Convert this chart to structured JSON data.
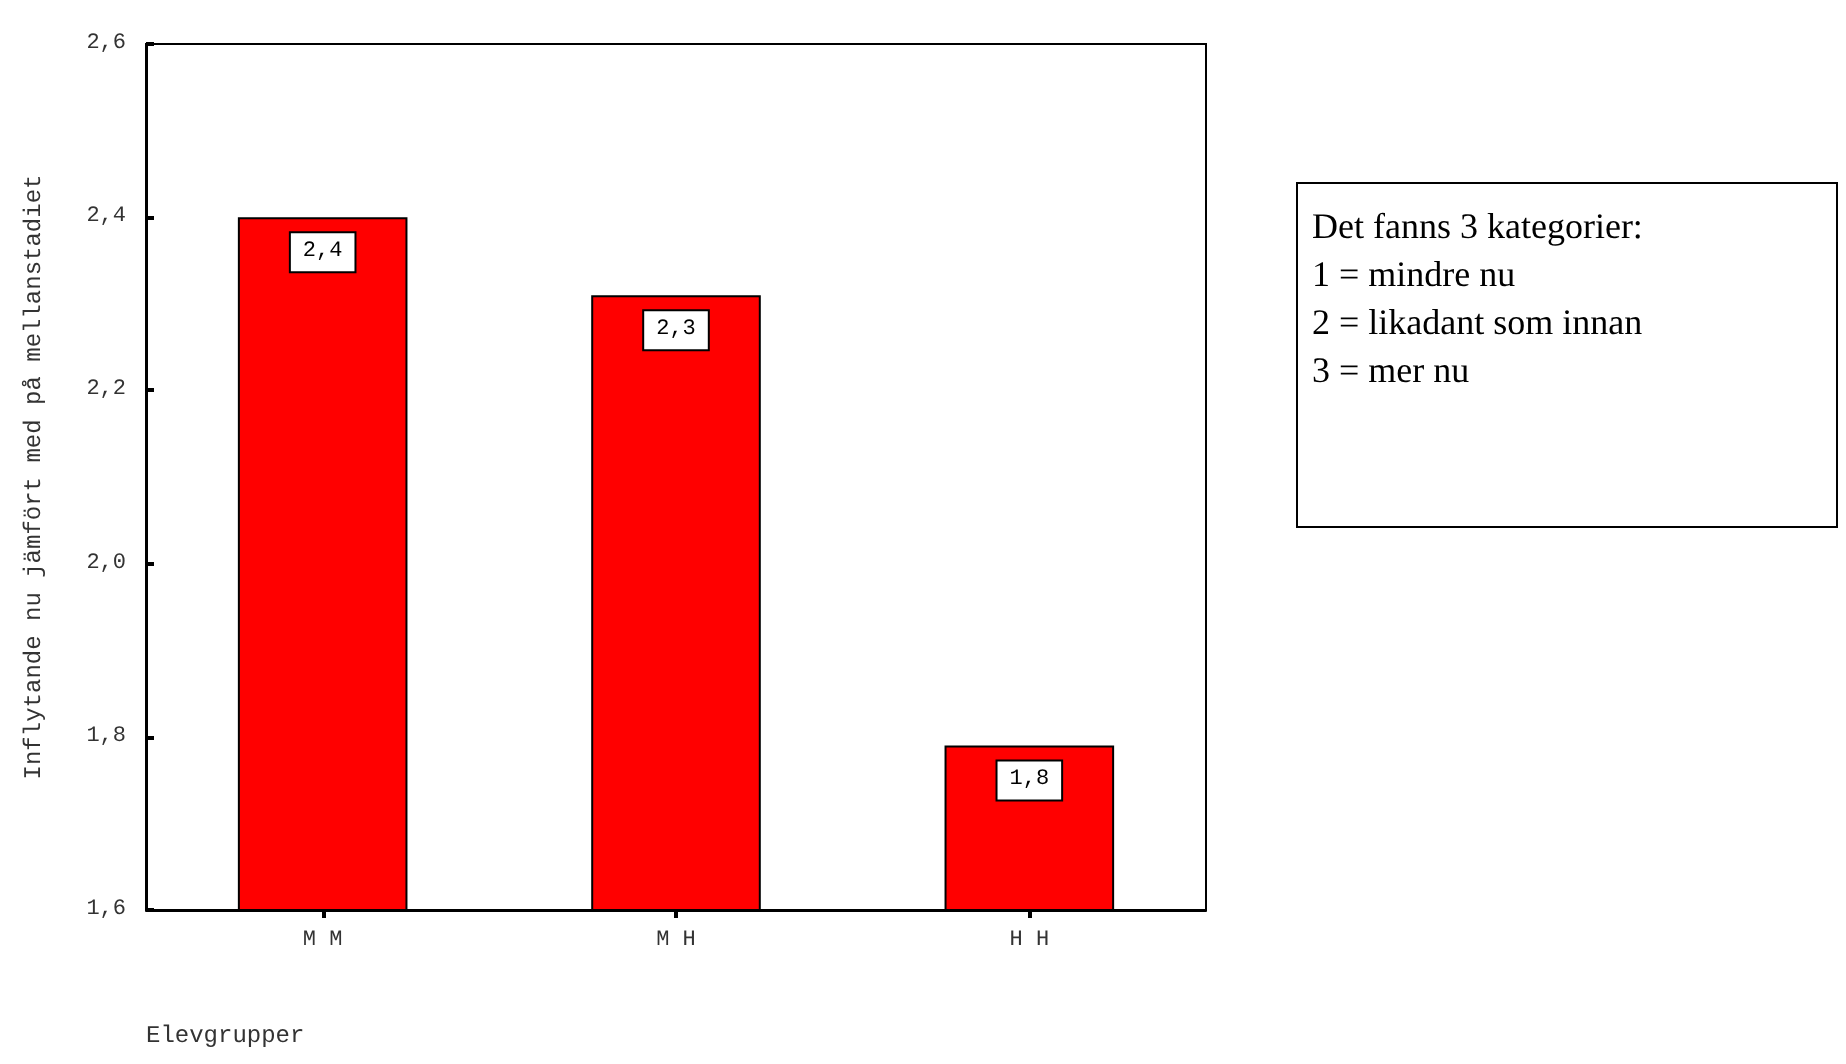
{
  "chart_data": {
    "type": "bar",
    "categories": [
      "M M",
      "M H",
      "H H"
    ],
    "values": [
      2.4,
      2.31,
      1.79
    ],
    "color": "#ff0000",
    "value_labels": [
      "2,4",
      "2,3",
      "1,8"
    ],
    "ylim": [
      1.6,
      2.6
    ],
    "yticks": [
      {
        "value": 1.6,
        "label": "1,6"
      },
      {
        "value": 1.8,
        "label": "1,8"
      },
      {
        "value": 2.0,
        "label": "2,0"
      },
      {
        "value": 2.2,
        "label": "2,2"
      },
      {
        "value": 2.4,
        "label": "2,4"
      },
      {
        "value": 2.6,
        "label": "2,6"
      }
    ],
    "ylabel": "Inflytande nu jämfört med på mellanstadiet",
    "xlabel": "Elevgrupper",
    "annotations": [
      "Det fanns 3 kategorier:",
      "1 = mindre nu",
      "2 = likadant som innan",
      "3 = mer nu"
    ],
    "grid": false
  }
}
